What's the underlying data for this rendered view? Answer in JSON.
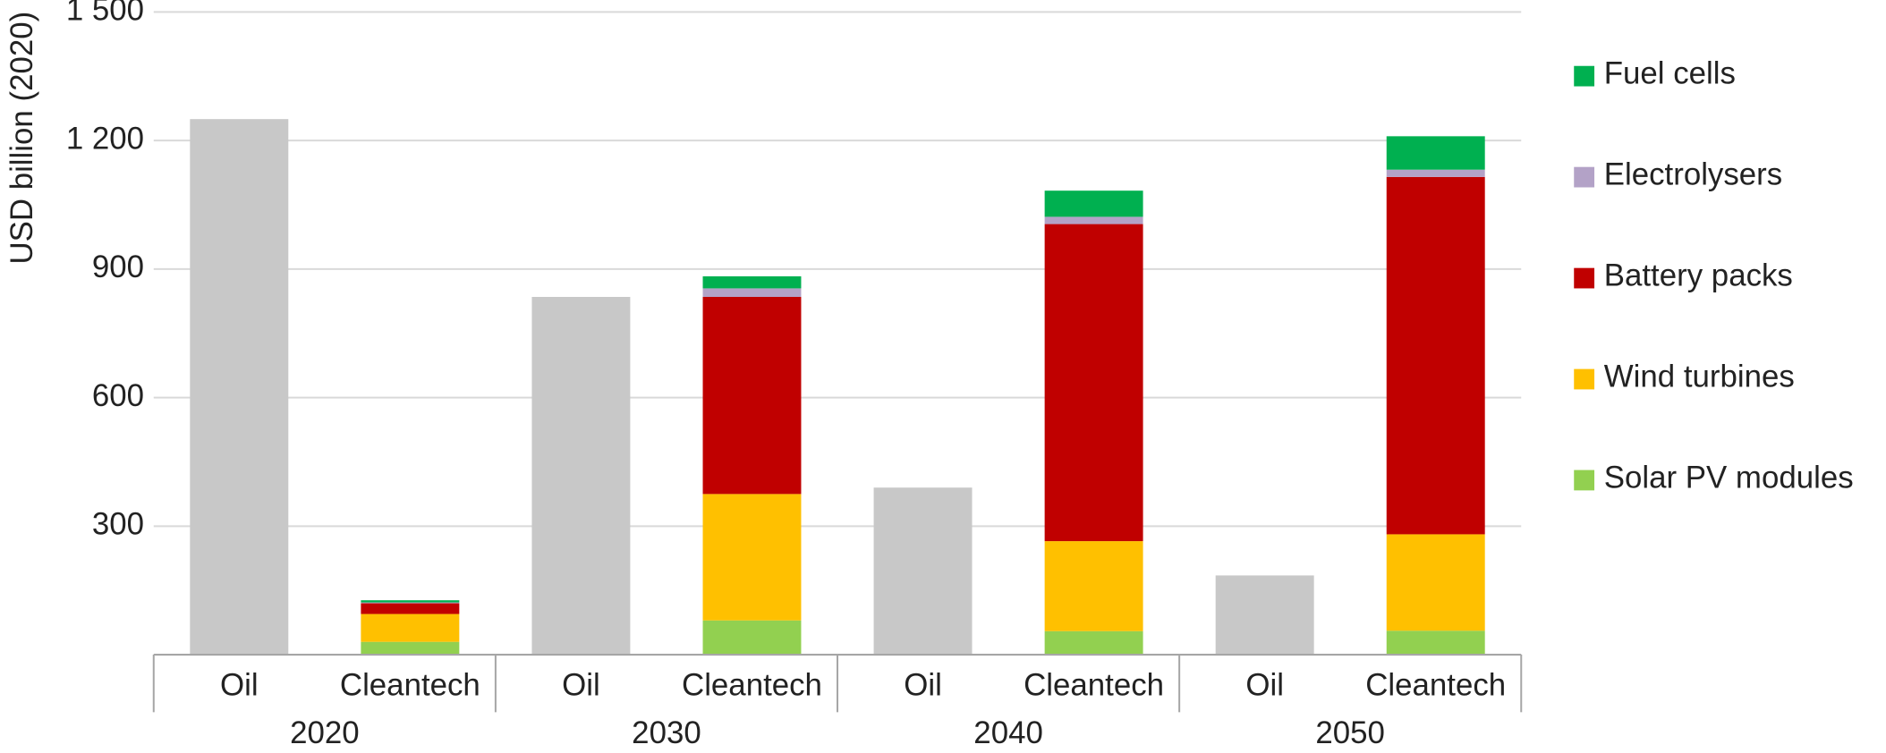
{
  "chart_data": {
    "type": "grouped-stacked-bar",
    "y_label": "USD billion (2020)",
    "groups": [
      "2020",
      "2030",
      "2040",
      "2050"
    ],
    "subcategories": [
      "Oil",
      "Cleantech"
    ],
    "oil": {
      "color": "#c8c8c8",
      "values": [
        1250,
        835,
        390,
        185
      ]
    },
    "series": [
      {
        "name": "Solar PV modules",
        "color": "#92d050",
        "values": [
          30,
          80,
          55,
          56
        ]
      },
      {
        "name": "Wind turbines",
        "color": "#ffc000",
        "values": [
          65,
          295,
          210,
          225
        ]
      },
      {
        "name": "Battery packs",
        "color": "#c00000",
        "values": [
          25,
          460,
          740,
          834
        ]
      },
      {
        "name": "Electrolysers",
        "color": "#b3a2c7",
        "values": [
          2,
          20,
          17,
          17
        ]
      },
      {
        "name": "Fuel cells",
        "color": "#00b050",
        "values": [
          5,
          28,
          61,
          78
        ]
      }
    ],
    "ylim": [
      0,
      1500
    ],
    "yticks": [
      300,
      600,
      900,
      {
        "value": 1200,
        "label": "1 200"
      },
      {
        "value": 1500,
        "label": "1 500"
      }
    ],
    "grid": true
  }
}
